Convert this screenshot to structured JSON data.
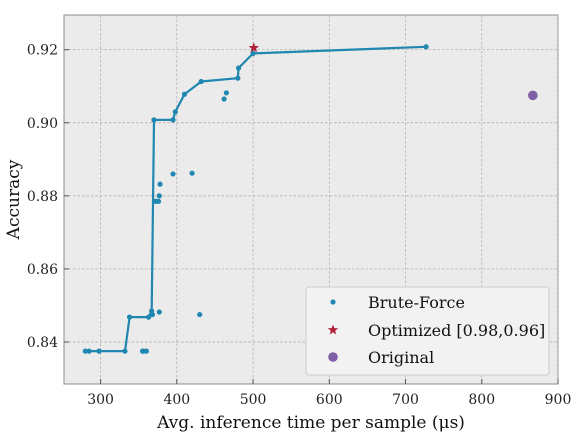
{
  "chart_data": {
    "type": "scatter",
    "title": "",
    "xlabel": "Avg. inference time per sample (μs)",
    "ylabel": "Accuracy",
    "xlim": [
      252,
      900
    ],
    "ylim": [
      0.8285,
      0.9295
    ],
    "xticks": [
      300,
      400,
      500,
      600,
      700,
      800,
      900
    ],
    "yticks": [
      0.84,
      0.86,
      0.88,
      0.9,
      0.92
    ],
    "ytick_labels": [
      "0.84",
      "0.86",
      "0.88",
      "0.90",
      "0.92"
    ],
    "grid": true,
    "legend_position": "lower-right",
    "colors": {
      "brute_force": "#1f87b0",
      "optimized": "#b0213a",
      "original": "#7f5fa6",
      "axes_bg": "#ebebeb",
      "grid": "#a8a8a8"
    },
    "series": [
      {
        "name": "Brute-Force",
        "marker": "dot",
        "x": [
          280,
          285,
          298,
          332,
          338,
          355,
          356,
          360,
          363,
          367,
          368,
          370,
          372,
          373,
          376,
          377,
          377,
          378,
          395,
          395,
          398,
          410,
          420,
          430,
          432,
          462,
          465,
          480,
          481,
          500,
          727
        ],
        "y": [
          0.8375,
          0.8375,
          0.8375,
          0.8375,
          0.8468,
          0.8375,
          0.8375,
          0.8375,
          0.8468,
          0.8485,
          0.8475,
          0.9008,
          0.8785,
          0.8785,
          0.8785,
          0.88,
          0.8482,
          0.8832,
          0.886,
          0.9008,
          0.903,
          0.9078,
          0.8862,
          0.8475,
          0.9113,
          0.9065,
          0.9082,
          0.9122,
          0.915,
          0.919,
          0.9208
        ]
      },
      {
        "name": "Optimized [0.98,0.96]",
        "marker": "star",
        "x": [
          501
        ],
        "y": [
          0.9205
        ]
      },
      {
        "name": "Original",
        "marker": "circle",
        "x": [
          867
        ],
        "y": [
          0.9075
        ]
      }
    ],
    "frontier": {
      "x": [
        280,
        332,
        338,
        363,
        367,
        370,
        395,
        398,
        410,
        432,
        480,
        481,
        500,
        727
      ],
      "y": [
        0.8375,
        0.8375,
        0.8468,
        0.8468,
        0.8485,
        0.9008,
        0.9008,
        0.903,
        0.9078,
        0.9113,
        0.9122,
        0.915,
        0.919,
        0.9208
      ]
    }
  }
}
